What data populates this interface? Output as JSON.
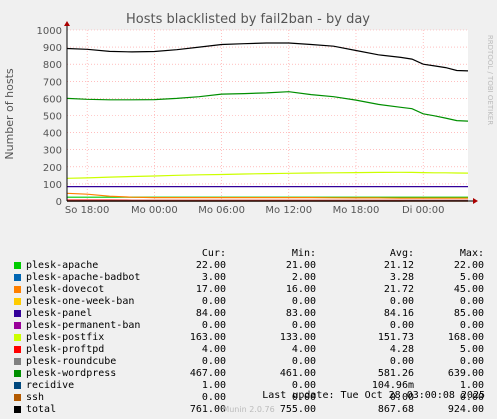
{
  "chart_data": {
    "type": "line",
    "title": "Hosts blacklisted by fail2ban - by day",
    "ylabel": "Number of hosts",
    "side_label": "RRDTOOL / TOBI OETIKER",
    "ylim": [
      0,
      1000
    ],
    "yticks": [
      0,
      100,
      200,
      300,
      400,
      500,
      600,
      700,
      800,
      900,
      1000
    ],
    "x_ticks": [
      "So 18:00",
      "Mo 00:00",
      "Mo 06:00",
      "Mo 12:00",
      "Mo 18:00",
      "Di 00:00"
    ],
    "x_tick_hours": [
      0,
      6,
      12,
      18,
      24,
      30
    ],
    "x_hours": [
      -1.8,
      0,
      2,
      4,
      6,
      8,
      10,
      12,
      14,
      16,
      18,
      20,
      22,
      24,
      26,
      28,
      29,
      30,
      31,
      32,
      33,
      34
    ],
    "series": [
      {
        "name": "plesk-apache",
        "color": "#00cc00",
        "values": [
          22,
          22,
          22,
          22,
          22,
          22,
          22,
          22,
          22,
          22,
          22,
          22,
          22,
          22,
          22,
          22,
          22,
          22,
          22,
          22,
          22,
          22
        ]
      },
      {
        "name": "plesk-apache-badbot",
        "color": "#0066b3",
        "values": [
          3,
          3,
          3,
          3,
          3,
          3,
          3,
          3,
          3,
          3,
          3,
          3,
          3,
          3,
          3,
          3,
          3,
          3,
          3,
          3,
          3,
          3
        ]
      },
      {
        "name": "plesk-dovecot",
        "color": "#ff8000",
        "values": [
          45,
          40,
          28,
          22,
          20,
          20,
          20,
          20,
          20,
          20,
          20,
          20,
          19,
          18,
          18,
          17,
          17,
          17,
          17,
          17,
          17,
          17
        ]
      },
      {
        "name": "plesk-one-week-ban",
        "color": "#ffcc00",
        "values": [
          0,
          0,
          0,
          0,
          0,
          0,
          0,
          0,
          0,
          0,
          0,
          0,
          0,
          0,
          0,
          0,
          0,
          0,
          0,
          0,
          0,
          0
        ]
      },
      {
        "name": "plesk-panel",
        "color": "#330099",
        "values": [
          84,
          84,
          84,
          84,
          84,
          84,
          84,
          84,
          84,
          84,
          84,
          84,
          84,
          84,
          84,
          84,
          84,
          84,
          84,
          84,
          84,
          84
        ]
      },
      {
        "name": "plesk-permanent-ban",
        "color": "#990099",
        "values": [
          0,
          0,
          0,
          0,
          0,
          0,
          0,
          0,
          0,
          0,
          0,
          0,
          0,
          0,
          0,
          0,
          0,
          0,
          0,
          0,
          0,
          0
        ]
      },
      {
        "name": "plesk-postfix",
        "color": "#ccff00",
        "values": [
          133,
          135,
          140,
          143,
          146,
          150,
          153,
          155,
          158,
          160,
          162,
          164,
          165,
          166,
          167,
          168,
          167,
          166,
          165,
          165,
          164,
          163
        ]
      },
      {
        "name": "plesk-proftpd",
        "color": "#ff0000",
        "values": [
          5,
          5,
          5,
          4,
          4,
          4,
          4,
          4,
          4,
          4,
          4,
          4,
          4,
          4,
          4,
          4,
          4,
          4,
          4,
          4,
          4,
          4
        ]
      },
      {
        "name": "plesk-roundcube",
        "color": "#808080",
        "values": [
          0,
          0,
          0,
          0,
          0,
          0,
          0,
          0,
          0,
          0,
          0,
          0,
          0,
          0,
          0,
          0,
          0,
          0,
          0,
          0,
          0,
          0
        ]
      },
      {
        "name": "plesk-wordpress",
        "color": "#008f00",
        "values": [
          600,
          595,
          592,
          592,
          593,
          600,
          610,
          625,
          628,
          632,
          639,
          622,
          610,
          590,
          565,
          548,
          540,
          510,
          498,
          485,
          470,
          467
        ]
      },
      {
        "name": "recidive",
        "color": "#00487d",
        "values": [
          0,
          0,
          0,
          0,
          0,
          0,
          0,
          0,
          0,
          0,
          0,
          0,
          0,
          0,
          0,
          0,
          1,
          1,
          1,
          1,
          1,
          1
        ]
      },
      {
        "name": "ssh",
        "color": "#b35a00",
        "values": [
          0,
          0,
          0,
          0,
          0,
          0,
          0,
          0,
          0,
          0,
          0,
          0,
          0,
          0,
          0,
          0,
          0,
          0,
          0,
          0,
          0,
          0
        ]
      },
      {
        "name": "total",
        "color": "#000000",
        "values": [
          892,
          887,
          875,
          872,
          874,
          885,
          900,
          915,
          920,
          924,
          924,
          915,
          905,
          880,
          855,
          840,
          830,
          800,
          790,
          780,
          763,
          761
        ]
      }
    ]
  },
  "legend": {
    "headers": [
      "Cur:",
      "Min:",
      "Avg:",
      "Max:"
    ],
    "rows": [
      {
        "name": "plesk-apache",
        "color": "#00cc00",
        "cur": "22.00",
        "min": "21.00",
        "avg": "21.12",
        "max": "22.00"
      },
      {
        "name": "plesk-apache-badbot",
        "color": "#0066b3",
        "cur": "3.00",
        "min": "2.00",
        "avg": "3.28",
        "max": "5.00"
      },
      {
        "name": "plesk-dovecot",
        "color": "#ff8000",
        "cur": "17.00",
        "min": "16.00",
        "avg": "21.72",
        "max": "45.00"
      },
      {
        "name": "plesk-one-week-ban",
        "color": "#ffcc00",
        "cur": "0.00",
        "min": "0.00",
        "avg": "0.00",
        "max": "0.00"
      },
      {
        "name": "plesk-panel",
        "color": "#330099",
        "cur": "84.00",
        "min": "83.00",
        "avg": "84.16",
        "max": "85.00"
      },
      {
        "name": "plesk-permanent-ban",
        "color": "#990099",
        "cur": "0.00",
        "min": "0.00",
        "avg": "0.00",
        "max": "0.00"
      },
      {
        "name": "plesk-postfix",
        "color": "#ccff00",
        "cur": "163.00",
        "min": "133.00",
        "avg": "151.73",
        "max": "168.00"
      },
      {
        "name": "plesk-proftpd",
        "color": "#ff0000",
        "cur": "4.00",
        "min": "4.00",
        "avg": "4.28",
        "max": "5.00"
      },
      {
        "name": "plesk-roundcube",
        "color": "#808080",
        "cur": "0.00",
        "min": "0.00",
        "avg": "0.00",
        "max": "0.00"
      },
      {
        "name": "plesk-wordpress",
        "color": "#008f00",
        "cur": "467.00",
        "min": "461.00",
        "avg": "581.26",
        "max": "639.00"
      },
      {
        "name": "recidive",
        "color": "#00487d",
        "cur": "1.00",
        "min": "0.00",
        "avg": "104.96m",
        "max": "1.00"
      },
      {
        "name": "ssh",
        "color": "#b35a00",
        "cur": "0.00",
        "min": "0.00",
        "avg": "0.00",
        "max": "0.00"
      },
      {
        "name": "total",
        "color": "#000000",
        "cur": "761.00",
        "min": "755.00",
        "avg": "867.68",
        "max": "924.00"
      }
    ]
  },
  "last_update": "Last update: Tue Oct 28 03:00:08 2025",
  "version": "Munin 2.0.76"
}
